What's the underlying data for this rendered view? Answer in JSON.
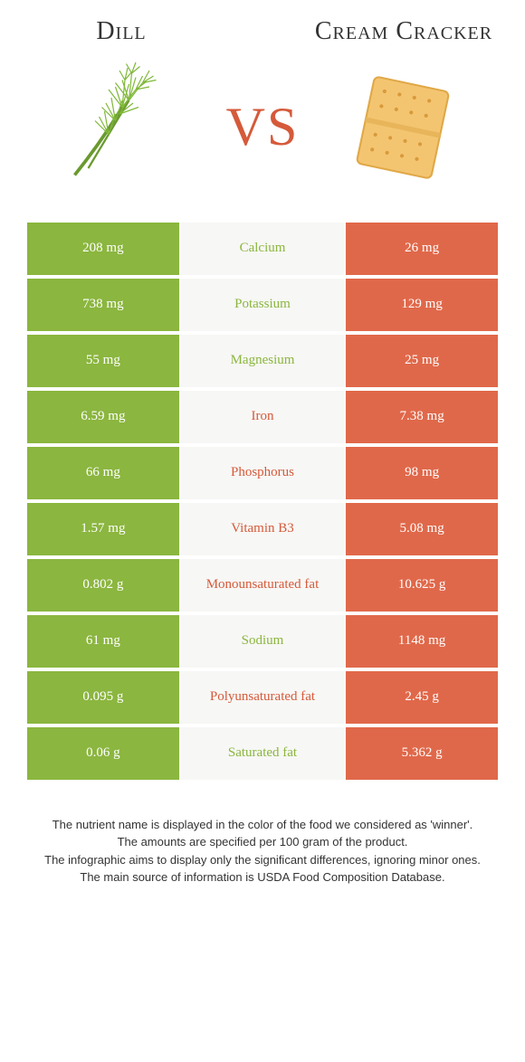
{
  "header": {
    "left_title": "Dill",
    "right_title": "Cream Cracker",
    "vs": "VS"
  },
  "colors": {
    "green": "#8bb63f",
    "orange": "#e0684a",
    "orange_text": "#d55a3a",
    "center_bg": "#f7f7f5",
    "white": "#ffffff"
  },
  "rows": [
    {
      "left": "208 mg",
      "label": "Calcium",
      "right": "26 mg",
      "winner": "left"
    },
    {
      "left": "738 mg",
      "label": "Potassium",
      "right": "129 mg",
      "winner": "left"
    },
    {
      "left": "55 mg",
      "label": "Magnesium",
      "right": "25 mg",
      "winner": "left"
    },
    {
      "left": "6.59 mg",
      "label": "Iron",
      "right": "7.38 mg",
      "winner": "right"
    },
    {
      "left": "66 mg",
      "label": "Phosphorus",
      "right": "98 mg",
      "winner": "right"
    },
    {
      "left": "1.57 mg",
      "label": "Vitamin B3",
      "right": "5.08 mg",
      "winner": "right"
    },
    {
      "left": "0.802 g",
      "label": "Monounsaturated fat",
      "right": "10.625 g",
      "winner": "right"
    },
    {
      "left": "61 mg",
      "label": "Sodium",
      "right": "1148 mg",
      "winner": "left"
    },
    {
      "left": "0.095 g",
      "label": "Polyunsaturated fat",
      "right": "2.45 g",
      "winner": "right"
    },
    {
      "left": "0.06 g",
      "label": "Saturated fat",
      "right": "5.362 g",
      "winner": "left"
    }
  ],
  "footer": {
    "line1": "The nutrient name is displayed in the color of the food we considered as 'winner'.",
    "line2": "The amounts are specified per 100 gram of the product.",
    "line3": "The infographic aims to display only the significant differences, ignoring minor ones.",
    "line4": "The main source of information is USDA Food Composition Database."
  }
}
